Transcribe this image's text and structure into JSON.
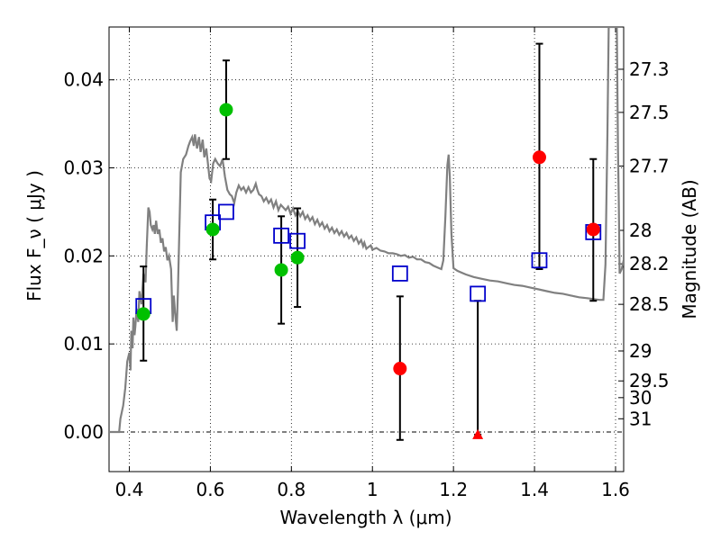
{
  "chart_data": {
    "type": "scatter",
    "title": "",
    "xlabel": "Wavelength  λ (μm)",
    "ylabel": "Flux  F_ν  ( μJy )",
    "ylabel_right": "Magnitude (AB)",
    "xlim": [
      0.35,
      1.62
    ],
    "ylim": [
      -0.0045,
      0.046
    ],
    "grid": true,
    "legend": "none",
    "x_ticks": [
      0.4,
      0.6,
      0.8,
      1.0,
      1.2,
      1.4,
      1.6
    ],
    "x_tick_labels": [
      "0.4",
      "0.6",
      "0.8",
      "1",
      "1.2",
      "1.4",
      "1.6"
    ],
    "y_ticks": [
      0.0,
      0.01,
      0.02,
      0.03,
      0.04
    ],
    "y_tick_labels": [
      "0.00",
      "0.01",
      "0.02",
      "0.03",
      "0.04"
    ],
    "right_ticks": [
      {
        "label": "27.3",
        "flux": 0.0412
      },
      {
        "label": "27.5",
        "flux": 0.0363
      },
      {
        "label": "27.7",
        "flux": 0.0302
      },
      {
        "label": "28",
        "flux": 0.0229
      },
      {
        "label": "28.2",
        "flux": 0.0191
      },
      {
        "label": "28.5",
        "flux": 0.0145
      },
      {
        "label": "29",
        "flux": 0.0092
      },
      {
        "label": "29.5",
        "flux": 0.0058
      },
      {
        "label": "30",
        "flux": 0.0039
      },
      {
        "label": "31",
        "flux": 0.0015
      }
    ],
    "series": [
      {
        "marker": "circle",
        "color": "#00c000",
        "points": [
          {
            "x": 0.435,
            "y": 0.0134,
            "err_low": 0.0081,
            "err_high": 0.0188
          },
          {
            "x": 0.606,
            "y": 0.023,
            "err_low": 0.0196,
            "err_high": 0.0264
          },
          {
            "x": 0.639,
            "y": 0.0366,
            "err_low": 0.031,
            "err_high": 0.0422
          },
          {
            "x": 0.775,
            "y": 0.0184,
            "err_low": 0.0123,
            "err_high": 0.0245
          },
          {
            "x": 0.815,
            "y": 0.0198,
            "err_low": 0.0142,
            "err_high": 0.0254
          }
        ]
      },
      {
        "marker": "circle",
        "color": "#ff0000",
        "points": [
          {
            "x": 1.068,
            "y": 0.0072,
            "err_low": -0.0009,
            "err_high": 0.0154
          },
          {
            "x": 1.412,
            "y": 0.0312,
            "err_low": 0.0185,
            "err_high": 0.0441
          },
          {
            "x": 1.545,
            "y": 0.023,
            "err_low": 0.0149,
            "err_high": 0.031
          }
        ]
      },
      {
        "marker": "triangle",
        "color": "#ff0000",
        "points": [
          {
            "x": 1.26,
            "y": -0.0003,
            "err_low": -0.0003,
            "err_high": 0.0149
          }
        ]
      },
      {
        "marker": "square",
        "color": "#0000cc",
        "points": [
          {
            "x": 0.435,
            "y": 0.0143
          },
          {
            "x": 0.606,
            "y": 0.0238
          },
          {
            "x": 0.639,
            "y": 0.025
          },
          {
            "x": 0.775,
            "y": 0.0223
          },
          {
            "x": 0.815,
            "y": 0.0217
          },
          {
            "x": 1.068,
            "y": 0.018
          },
          {
            "x": 1.26,
            "y": 0.0157
          },
          {
            "x": 1.412,
            "y": 0.0195
          },
          {
            "x": 1.545,
            "y": 0.0227
          }
        ]
      },
      {
        "marker": "line",
        "color": "#808080",
        "points": [
          [
            0.35,
            0.0
          ],
          [
            0.375,
            0.0
          ],
          [
            0.378,
            0.0015
          ],
          [
            0.385,
            0.003
          ],
          [
            0.39,
            0.005
          ],
          [
            0.395,
            0.008
          ],
          [
            0.4,
            0.009
          ],
          [
            0.403,
            0.007
          ],
          [
            0.405,
            0.0115
          ],
          [
            0.408,
            0.0095
          ],
          [
            0.41,
            0.013
          ],
          [
            0.413,
            0.011
          ],
          [
            0.415,
            0.012
          ],
          [
            0.418,
            0.014
          ],
          [
            0.422,
            0.0125
          ],
          [
            0.425,
            0.016
          ],
          [
            0.43,
            0.0145
          ],
          [
            0.435,
            0.018
          ],
          [
            0.44,
            0.017
          ],
          [
            0.443,
            0.021
          ],
          [
            0.447,
            0.0255
          ],
          [
            0.45,
            0.025
          ],
          [
            0.453,
            0.0235
          ],
          [
            0.457,
            0.023
          ],
          [
            0.46,
            0.0235
          ],
          [
            0.463,
            0.0225
          ],
          [
            0.466,
            0.024
          ],
          [
            0.47,
            0.0225
          ],
          [
            0.474,
            0.023
          ],
          [
            0.478,
            0.0215
          ],
          [
            0.482,
            0.022
          ],
          [
            0.486,
            0.0205
          ],
          [
            0.49,
            0.021
          ],
          [
            0.494,
            0.0195
          ],
          [
            0.498,
            0.02
          ],
          [
            0.503,
            0.0185
          ],
          [
            0.507,
            0.0125
          ],
          [
            0.51,
            0.0155
          ],
          [
            0.513,
            0.0135
          ],
          [
            0.517,
            0.0115
          ],
          [
            0.52,
            0.016
          ],
          [
            0.523,
            0.022
          ],
          [
            0.527,
            0.0295
          ],
          [
            0.533,
            0.031
          ],
          [
            0.54,
            0.0315
          ],
          [
            0.546,
            0.0325
          ],
          [
            0.55,
            0.033
          ],
          [
            0.555,
            0.0335
          ],
          [
            0.559,
            0.0325
          ],
          [
            0.562,
            0.0338
          ],
          [
            0.567,
            0.0322
          ],
          [
            0.572,
            0.0335
          ],
          [
            0.576,
            0.0318
          ],
          [
            0.581,
            0.0332
          ],
          [
            0.585,
            0.0312
          ],
          [
            0.59,
            0.0322
          ],
          [
            0.594,
            0.0305
          ],
          [
            0.598,
            0.0288
          ],
          [
            0.602,
            0.0285
          ],
          [
            0.607,
            0.0305
          ],
          [
            0.612,
            0.031
          ],
          [
            0.618,
            0.0305
          ],
          [
            0.624,
            0.0302
          ],
          [
            0.63,
            0.031
          ],
          [
            0.636,
            0.029
          ],
          [
            0.642,
            0.0275
          ],
          [
            0.648,
            0.027
          ],
          [
            0.653,
            0.0268
          ],
          [
            0.659,
            0.026
          ],
          [
            0.664,
            0.0272
          ],
          [
            0.67,
            0.028
          ],
          [
            0.676,
            0.0275
          ],
          [
            0.682,
            0.0278
          ],
          [
            0.688,
            0.0272
          ],
          [
            0.694,
            0.0278
          ],
          [
            0.7,
            0.0272
          ],
          [
            0.706,
            0.0275
          ],
          [
            0.712,
            0.0282
          ],
          [
            0.716,
            0.0275
          ],
          [
            0.72,
            0.027
          ],
          [
            0.726,
            0.0268
          ],
          [
            0.732,
            0.0262
          ],
          [
            0.738,
            0.0266
          ],
          [
            0.744,
            0.026
          ],
          [
            0.75,
            0.0264
          ],
          [
            0.756,
            0.0255
          ],
          [
            0.762,
            0.0262
          ],
          [
            0.768,
            0.0252
          ],
          [
            0.774,
            0.0258
          ],
          [
            0.78,
            0.0255
          ],
          [
            0.786,
            0.0252
          ],
          [
            0.792,
            0.0256
          ],
          [
            0.798,
            0.0248
          ],
          [
            0.804,
            0.0254
          ],
          [
            0.81,
            0.0246
          ],
          [
            0.816,
            0.0251
          ],
          [
            0.822,
            0.0245
          ],
          [
            0.828,
            0.025
          ],
          [
            0.834,
            0.0242
          ],
          [
            0.84,
            0.0246
          ],
          [
            0.846,
            0.024
          ],
          [
            0.852,
            0.0244
          ],
          [
            0.858,
            0.0236
          ],
          [
            0.864,
            0.0241
          ],
          [
            0.87,
            0.0234
          ],
          [
            0.876,
            0.0238
          ],
          [
            0.882,
            0.0231
          ],
          [
            0.888,
            0.0235
          ],
          [
            0.894,
            0.0228
          ],
          [
            0.9,
            0.0232
          ],
          [
            0.906,
            0.0226
          ],
          [
            0.912,
            0.023
          ],
          [
            0.918,
            0.0224
          ],
          [
            0.924,
            0.0228
          ],
          [
            0.93,
            0.0222
          ],
          [
            0.936,
            0.0226
          ],
          [
            0.942,
            0.022
          ],
          [
            0.948,
            0.0223
          ],
          [
            0.954,
            0.0217
          ],
          [
            0.96,
            0.0221
          ],
          [
            0.966,
            0.0214
          ],
          [
            0.972,
            0.0218
          ],
          [
            0.977,
            0.0211
          ],
          [
            0.98,
            0.0215
          ],
          [
            0.985,
            0.0208
          ],
          [
            0.99,
            0.021
          ],
          [
            0.996,
            0.0212
          ],
          [
            1.0,
            0.0207
          ],
          [
            1.01,
            0.0209
          ],
          [
            1.02,
            0.0206
          ],
          [
            1.03,
            0.0205
          ],
          [
            1.04,
            0.0203
          ],
          [
            1.05,
            0.0203
          ],
          [
            1.06,
            0.0202
          ],
          [
            1.07,
            0.02
          ],
          [
            1.08,
            0.0201
          ],
          [
            1.09,
            0.0198
          ],
          [
            1.1,
            0.0199
          ],
          [
            1.11,
            0.0196
          ],
          [
            1.12,
            0.0196
          ],
          [
            1.13,
            0.0193
          ],
          [
            1.14,
            0.0192
          ],
          [
            1.15,
            0.0189
          ],
          [
            1.16,
            0.0187
          ],
          [
            1.17,
            0.0185
          ],
          [
            1.175,
            0.0195
          ],
          [
            1.18,
            0.0245
          ],
          [
            1.185,
            0.0303
          ],
          [
            1.188,
            0.0315
          ],
          [
            1.191,
            0.029
          ],
          [
            1.195,
            0.0225
          ],
          [
            1.2,
            0.0186
          ],
          [
            1.21,
            0.0183
          ],
          [
            1.23,
            0.0179
          ],
          [
            1.25,
            0.0176
          ],
          [
            1.27,
            0.0174
          ],
          [
            1.29,
            0.0172
          ],
          [
            1.31,
            0.0171
          ],
          [
            1.33,
            0.0169
          ],
          [
            1.35,
            0.0167
          ],
          [
            1.37,
            0.0166
          ],
          [
            1.39,
            0.0164
          ],
          [
            1.41,
            0.0162
          ],
          [
            1.43,
            0.016
          ],
          [
            1.45,
            0.0158
          ],
          [
            1.47,
            0.0157
          ],
          [
            1.49,
            0.0155
          ],
          [
            1.51,
            0.0153
          ],
          [
            1.53,
            0.0152
          ],
          [
            1.56,
            0.015
          ],
          [
            1.57,
            0.015
          ],
          [
            1.575,
            0.019
          ],
          [
            1.58,
            0.034
          ],
          [
            1.583,
            0.046
          ],
          [
            1.603,
            0.046
          ],
          [
            1.606,
            0.032
          ],
          [
            1.608,
            0.026
          ],
          [
            1.61,
            0.018
          ],
          [
            1.615,
            0.0185
          ],
          [
            1.62,
            0.0195
          ]
        ]
      }
    ]
  }
}
